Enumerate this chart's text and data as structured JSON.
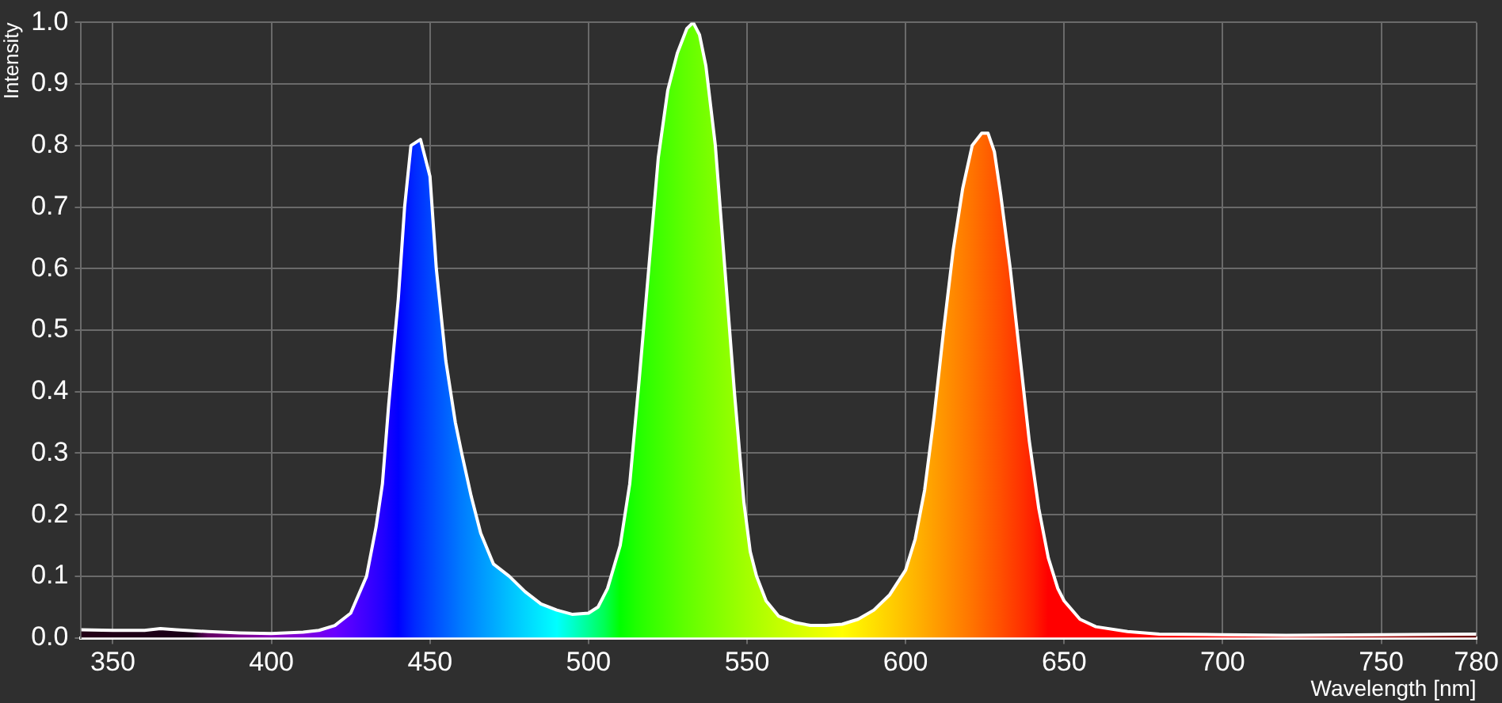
{
  "chart_data": {
    "type": "area",
    "xlabel": "Wavelength [nm]",
    "ylabel": "Intensity",
    "xlim": [
      340,
      780
    ],
    "xticks": [
      350,
      400,
      450,
      500,
      550,
      600,
      650,
      700,
      750,
      780
    ],
    "ylim": [
      0,
      1
    ],
    "yticks": [
      {
        "value": 0,
        "label": "0.0"
      },
      0.1,
      0.2,
      0.3,
      0.4,
      0.5,
      0.6,
      0.7,
      0.8,
      0.9,
      {
        "value": 1,
        "label": "1.0"
      }
    ],
    "grid": true,
    "legend": false,
    "marker": "none",
    "line_style": "solid",
    "series": [
      {
        "color": "#ffffff",
        "x": [
          340,
          350,
          360,
          365,
          370,
          380,
          390,
          400,
          410,
          415,
          420,
          425,
          430,
          433,
          435,
          437,
          440,
          442,
          444,
          447,
          450,
          452,
          455,
          458,
          460,
          463,
          466,
          470,
          475,
          480,
          485,
          490,
          495,
          500,
          503,
          506,
          510,
          513,
          516,
          519,
          522,
          525,
          528,
          531,
          533,
          535,
          537,
          540,
          543,
          546,
          549,
          551,
          553,
          556,
          560,
          565,
          570,
          575,
          580,
          585,
          590,
          595,
          600,
          603,
          606,
          609,
          612,
          615,
          618,
          621,
          624,
          626,
          628,
          630,
          633,
          636,
          639,
          642,
          645,
          648,
          650,
          655,
          660,
          670,
          680,
          700,
          720,
          750,
          780
        ],
        "values": [
          0.013,
          0.012,
          0.012,
          0.015,
          0.013,
          0.01,
          0.008,
          0.007,
          0.009,
          0.012,
          0.02,
          0.04,
          0.1,
          0.18,
          0.25,
          0.38,
          0.55,
          0.7,
          0.8,
          0.81,
          0.75,
          0.6,
          0.45,
          0.35,
          0.3,
          0.23,
          0.17,
          0.12,
          0.1,
          0.075,
          0.055,
          0.045,
          0.038,
          0.04,
          0.05,
          0.08,
          0.15,
          0.25,
          0.42,
          0.6,
          0.78,
          0.89,
          0.95,
          0.99,
          1.0,
          0.98,
          0.93,
          0.8,
          0.6,
          0.4,
          0.22,
          0.14,
          0.1,
          0.06,
          0.035,
          0.025,
          0.02,
          0.02,
          0.022,
          0.03,
          0.045,
          0.07,
          0.11,
          0.16,
          0.24,
          0.36,
          0.5,
          0.63,
          0.73,
          0.8,
          0.82,
          0.82,
          0.79,
          0.72,
          0.6,
          0.46,
          0.32,
          0.21,
          0.13,
          0.08,
          0.06,
          0.03,
          0.018,
          0.01,
          0.006,
          0.005,
          0.004,
          0.005,
          0.006
        ]
      }
    ]
  }
}
